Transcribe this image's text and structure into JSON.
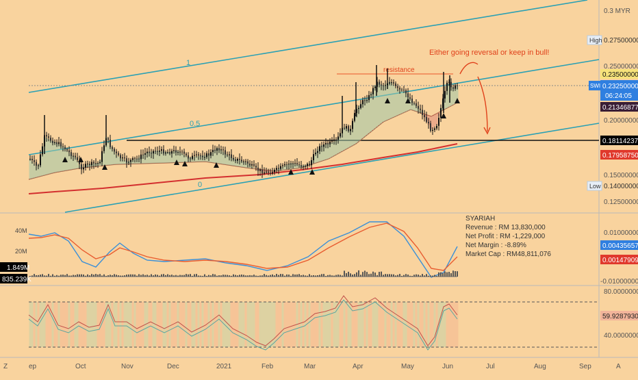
{
  "app": {
    "currency": "MYR"
  },
  "colors": {
    "background": "#f9d39e",
    "channel": "#2aa0b4",
    "ema_red": "#d32f2f",
    "resistance": "#f08050",
    "annotation": "#e0401a",
    "macd_blue": "#3a8fd8",
    "macd_red": "#e85c30",
    "price_tag_blue": "#2f7fe0",
    "price_tag_dark": "#3a1d35",
    "price_tag_yellow": "#f6e27a",
    "price_tag_black": "#000000",
    "price_tag_red": "#e0392c"
  },
  "main_scale": {
    "ticks": [
      "0.3 MYR",
      "0.25000000",
      "0.20000000",
      "0.15000000",
      "0.12500000"
    ],
    "tags": {
      "high_label": "High",
      "high_value": "0.27500000",
      "t1": "0.23500000",
      "symbol": "SWI",
      "last": "0.23250000",
      "countdown": "06:24:05",
      "t3": "0.21346877",
      "t4": "0.18114237",
      "t5": "0.17958750",
      "low_label": "Low",
      "low_value": "0.14000000"
    }
  },
  "annotations": {
    "fib_1": "1",
    "fib_05": "0.5",
    "fib_0": "0",
    "resistance": "resistance",
    "note": "Either going reversal or keep in bull!"
  },
  "macd_pane": {
    "ticks": [
      "0.01000000",
      "0.00000000",
      "-0.01000000"
    ],
    "tags": {
      "v1": "0.00435657",
      "v2": "0.00147909"
    },
    "vol_labels": [
      "40M",
      "20M"
    ],
    "vol_tags": {
      "v1": "1.849M",
      "v2": "835.239K"
    }
  },
  "info_box": {
    "title": "SYARIAH",
    "revenue": "Revenue : RM 13,830,000",
    "net_profit": "Net Profit : RM -1,229,000",
    "net_margin": "Net Margin : -8.89%",
    "market_cap": "Market Cap : RM48,811,076"
  },
  "rsi_pane": {
    "ticks": [
      "80.00000000",
      "40.00000000"
    ],
    "tag": "59.92879305"
  },
  "time_axis": {
    "left_btn": "Z",
    "right_btn": "A",
    "labels": [
      "ep",
      "Oct",
      "Nov",
      "Dec",
      "2021",
      "Feb",
      "Mar",
      "Apr",
      "May",
      "Jun",
      "Jul",
      "Aug",
      "Sep"
    ]
  },
  "chart_data": {
    "type": "candlestick",
    "title": "",
    "x_range": [
      "2020-09",
      "2021-09"
    ],
    "y_range": [
      0.12,
      0.34
    ],
    "y_scale": "log",
    "grid": false,
    "series": [
      {
        "name": "",
        "kind": "price",
        "values": [
          0.165,
          0.17,
          0.2,
          0.185,
          0.175,
          0.168,
          0.16,
          0.155,
          0.16,
          0.2,
          0.17,
          0.16,
          0.163,
          0.168,
          0.165,
          0.17,
          0.166,
          0.165,
          0.163,
          0.158,
          0.162,
          0.167,
          0.168,
          0.165,
          0.158,
          0.155,
          0.15,
          0.152,
          0.155,
          0.16,
          0.162,
          0.17,
          0.2,
          0.22,
          0.225,
          0.24,
          0.242,
          0.235,
          0.225,
          0.21,
          0.195,
          0.19,
          0.215,
          0.2325
        ]
      },
      {
        "name": "",
        "kind": "ema",
        "values": [
          0.135,
          0.14,
          0.148,
          0.15,
          0.152,
          0.155,
          0.158,
          0.158,
          0.157,
          0.156,
          0.155,
          0.154,
          0.155,
          0.156,
          0.157,
          0.158,
          0.16,
          0.163,
          0.168,
          0.172,
          0.176,
          0.1796
        ]
      }
    ],
    "macd": {
      "y_range": [
        -0.012,
        0.012
      ],
      "macd_end": 0.00435657,
      "signal_end": 0.00147909
    },
    "rsi": {
      "y_range": [
        30,
        80
      ],
      "last": 59.92879305,
      "bands": [
        70,
        35
      ]
    },
    "levels": {
      "high": 0.275,
      "low": 0.14,
      "support": 0.18114237,
      "resistance": 0.235
    }
  }
}
